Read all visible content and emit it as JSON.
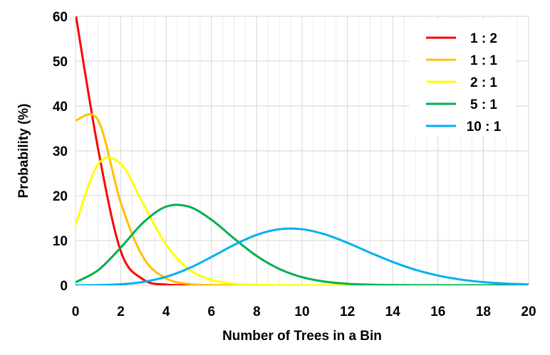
{
  "chart_data": {
    "type": "line",
    "title": "",
    "xlabel": "Number of Trees in a Bin",
    "ylabel": "Probability (%)",
    "xlim": [
      0,
      20
    ],
    "ylim": [
      0,
      60
    ],
    "xticks": [
      "0",
      "2",
      "4",
      "6",
      "8",
      "10",
      "12",
      "14",
      "16",
      "18",
      "20"
    ],
    "yticks": [
      "0",
      "10",
      "20",
      "30",
      "40",
      "50",
      "60"
    ],
    "grid": true,
    "legend_position": "top-right",
    "x": [
      0,
      1,
      2,
      3,
      4,
      5,
      6,
      7,
      8,
      9,
      10,
      11,
      12,
      13,
      14,
      15,
      16,
      17,
      18,
      19,
      20
    ],
    "series": [
      {
        "name": "1 : 2",
        "color": "#ff0000",
        "values": [
          60.65,
          30.33,
          7.58,
          1.26,
          0.16,
          0.02,
          0,
          0,
          0,
          0,
          0,
          0,
          0,
          0,
          0,
          0,
          0,
          0,
          0,
          0,
          0
        ]
      },
      {
        "name": "1 : 1",
        "color": "#ffc000",
        "values": [
          36.79,
          36.79,
          18.39,
          6.13,
          1.53,
          0.31,
          0.05,
          0.01,
          0,
          0,
          0,
          0,
          0,
          0,
          0,
          0,
          0,
          0,
          0,
          0,
          0
        ]
      },
      {
        "name": "2 : 1",
        "color": "#ffff00",
        "values": [
          13.53,
          27.07,
          27.07,
          18.04,
          9.02,
          3.61,
          1.2,
          0.34,
          0.09,
          0.02,
          0,
          0,
          0,
          0,
          0,
          0,
          0,
          0,
          0,
          0,
          0
        ]
      },
      {
        "name": "5 : 1",
        "color": "#00b050",
        "values": [
          0.67,
          3.37,
          8.42,
          14.04,
          17.55,
          17.55,
          14.62,
          10.44,
          6.53,
          3.63,
          1.81,
          0.82,
          0.34,
          0.13,
          0.05,
          0.02,
          0.01,
          0,
          0,
          0,
          0
        ]
      },
      {
        "name": "10 : 1",
        "color": "#00b0f0",
        "values": [
          0.005,
          0.045,
          0.23,
          0.76,
          1.89,
          3.78,
          6.31,
          9.01,
          11.26,
          12.51,
          12.51,
          11.37,
          9.48,
          7.29,
          5.21,
          3.47,
          2.17,
          1.28,
          0.71,
          0.37,
          0.19
        ]
      }
    ]
  }
}
